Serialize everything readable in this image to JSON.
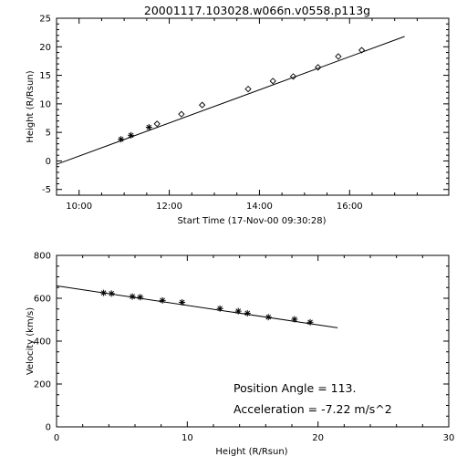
{
  "page_title": "20001117.103028.w066n.v0558.p113g",
  "chart_data": [
    {
      "type": "scatter",
      "xlabel": "Start Time (17-Nov-00 09:30:28)",
      "ylabel": "Height (R/Rsun)",
      "x_ticks": [
        "10:00",
        "12:00",
        "14:00",
        "16:00"
      ],
      "y_ticks": [
        "-5",
        "0",
        "5",
        "10",
        "15",
        "20",
        "25"
      ],
      "xlim_hours": [
        9.5,
        18.2
      ],
      "ylim": [
        -6,
        25
      ],
      "fit_line": {
        "x_hours": [
          9.5,
          17.22
        ],
        "y": [
          -0.6,
          21.8
        ]
      },
      "series": [
        {
          "marker": "asterisk",
          "x_hours": [
            10.93,
            11.15,
            11.55
          ],
          "y": [
            3.8,
            4.5,
            5.9
          ]
        },
        {
          "marker": "diamond",
          "x_hours": [
            11.73,
            12.27,
            12.73,
            13.75,
            14.3,
            14.75,
            15.3,
            15.75,
            16.27
          ],
          "y": [
            6.5,
            8.2,
            9.8,
            12.6,
            14.0,
            14.8,
            16.4,
            18.3,
            19.4
          ]
        }
      ]
    },
    {
      "type": "scatter",
      "xlabel": "Height (R/Rsun)",
      "ylabel": "Velocity (km/s)",
      "x_ticks": [
        "0",
        "10",
        "20",
        "30"
      ],
      "y_ticks": [
        "0",
        "200",
        "400",
        "600",
        "800"
      ],
      "xlim": [
        0,
        30
      ],
      "ylim": [
        0,
        800
      ],
      "fit_line": {
        "x": [
          0,
          21.5
        ],
        "y": [
          658,
          462
        ]
      },
      "series": [
        {
          "marker": "asterisk",
          "x": [
            3.6,
            4.2,
            5.8,
            6.4,
            8.1,
            9.6,
            12.5,
            13.9,
            14.6,
            16.2,
            18.2,
            19.4
          ],
          "y": [
            625,
            622,
            608,
            605,
            590,
            581,
            552,
            540,
            530,
            512,
            502,
            488
          ]
        }
      ],
      "annotations": {
        "position_angle": "Position Angle =  113.",
        "acceleration": "Acceleration =   -7.22 m/s^2"
      }
    }
  ]
}
